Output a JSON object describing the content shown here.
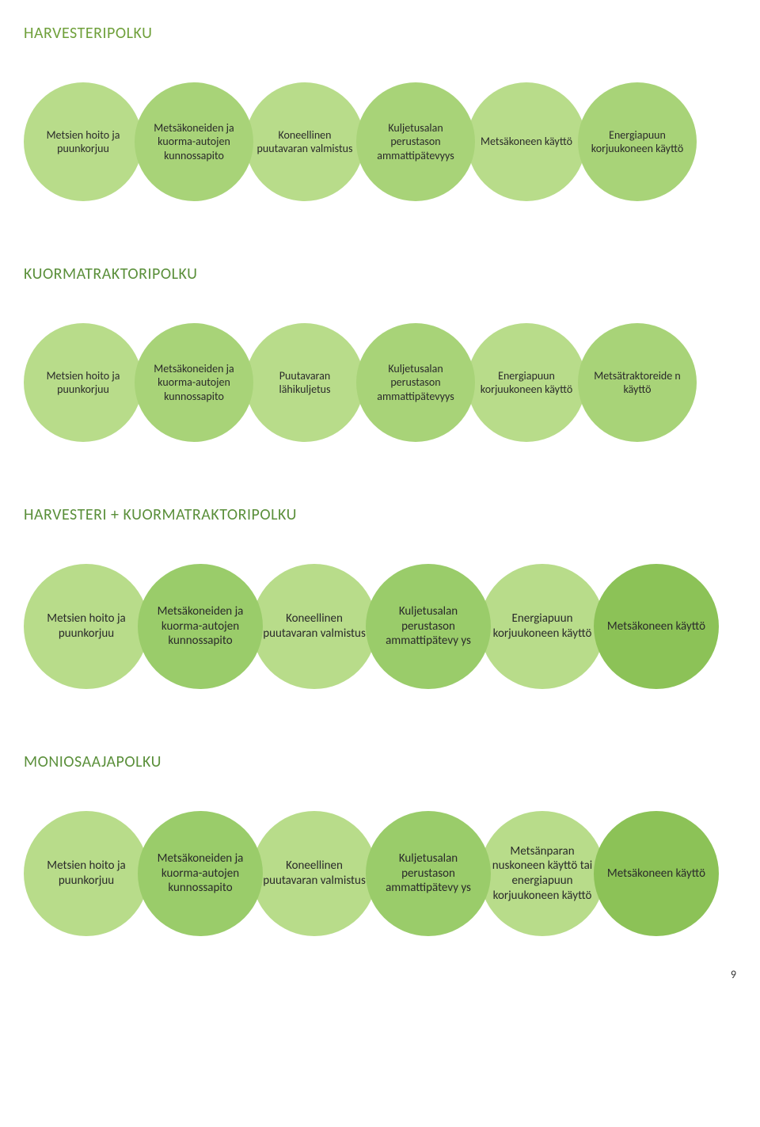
{
  "page_number": "9",
  "colors": {
    "title1": "#6fa03b",
    "title2": "#5a8f3a",
    "title3": "#5a8f3a",
    "title4": "#5a8f3a",
    "bubble_light": "#b8dc8a",
    "bubble_mid": "#a8d378",
    "bubble_dark1": "#9acc6a",
    "bubble_dark2": "#8cc257",
    "text": "#2a2a2a"
  },
  "sections": [
    {
      "id": "harvesteripolku",
      "title": "HARVESTERIPOLKU",
      "title_color_key": "title1",
      "bubble_size": 150,
      "overlap": -10,
      "font_size": 14,
      "bubbles": [
        {
          "text": "Metsien hoito ja puunkorjuu",
          "color_key": "bubble_light"
        },
        {
          "text": "Metsäkoneiden ja kuorma-autojen kunnossapito",
          "color_key": "bubble_mid"
        },
        {
          "text": "Koneellinen puutavaran valmistus",
          "color_key": "bubble_light"
        },
        {
          "text": "Kuljetusalan perustason ammattipätevyys",
          "color_key": "bubble_mid"
        },
        {
          "text": "Metsäkoneen käyttö",
          "color_key": "bubble_light"
        },
        {
          "text": "Energiapuun korjuukoneen käyttö",
          "color_key": "bubble_mid"
        }
      ]
    },
    {
      "id": "kuormatraktoripolku",
      "title": "KUORMATRAKTORIPOLKU",
      "title_color_key": "title2",
      "bubble_size": 150,
      "overlap": -10,
      "font_size": 14,
      "bubbles": [
        {
          "text": "Metsien hoito ja puunkorjuu",
          "color_key": "bubble_light"
        },
        {
          "text": "Metsäkoneiden ja kuorma-autojen kunnossapito",
          "color_key": "bubble_mid"
        },
        {
          "text": "Puutavaran lähikuljetus",
          "color_key": "bubble_light"
        },
        {
          "text": "Kuljetusalan perustason ammattipätevyys",
          "color_key": "bubble_mid"
        },
        {
          "text": "Energiapuun korjuukoneen käyttö",
          "color_key": "bubble_light"
        },
        {
          "text": "Metsätraktoreide n käyttö",
          "color_key": "bubble_mid"
        }
      ]
    },
    {
      "id": "harvesteri-kuormatraktoripolku",
      "title": "HARVESTERI + KUORMATRAKTORIPOLKU",
      "title_color_key": "title3",
      "bubble_size": 158,
      "overlap": -14,
      "font_size": 15,
      "bubbles": [
        {
          "text": "Metsien hoito ja puunkorjuu",
          "color_key": "bubble_light"
        },
        {
          "text": "Metsäkoneiden ja kuorma-autojen kunnossapito",
          "color_key": "bubble_dark1"
        },
        {
          "text": "Koneellinen puutavaran valmistus",
          "color_key": "bubble_light"
        },
        {
          "text": "Kuljetusalan perustason ammattipätevy ys",
          "color_key": "bubble_dark1"
        },
        {
          "text": "Energiapuun korjuukoneen käyttö",
          "color_key": "bubble_light"
        },
        {
          "text": "Metsäkoneen käyttö",
          "color_key": "bubble_dark2"
        }
      ]
    },
    {
      "id": "moniosaajapolku",
      "title": "MONIOSAAJAPOLKU",
      "title_color_key": "title4",
      "bubble_size": 158,
      "overlap": -14,
      "font_size": 15,
      "bubbles": [
        {
          "text": "Metsien hoito ja puunkorjuu",
          "color_key": "bubble_light"
        },
        {
          "text": "Metsäkoneiden ja kuorma-autojen kunnossapito",
          "color_key": "bubble_dark1"
        },
        {
          "text": "Koneellinen puutavaran valmistus",
          "color_key": "bubble_light"
        },
        {
          "text": "Kuljetusalan perustason ammattipätevy ys",
          "color_key": "bubble_dark1"
        },
        {
          "text": "Metsänparan nuskoneen käyttö tai energiapuun korjuukoneen käyttö",
          "color_key": "bubble_light"
        },
        {
          "text": "Metsäkoneen käyttö",
          "color_key": "bubble_dark2"
        }
      ]
    }
  ]
}
